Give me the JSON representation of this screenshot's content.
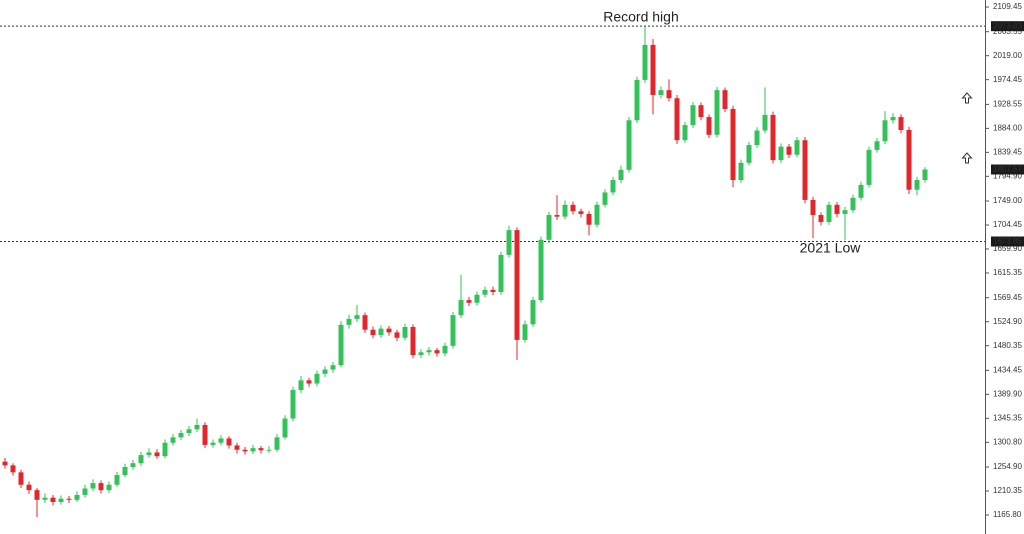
{
  "chart_data": {
    "type": "candlestick",
    "up_color": "#33c15a",
    "down_color": "#e3262b",
    "ylim": [
      1130.49,
      2122.45
    ],
    "yticks": [
      2109.45,
      2063.55,
      {
        "value": 2019,
        "label": "2019.00"
      },
      1974.45,
      1928.55,
      {
        "value": 1884,
        "label": "1884.00"
      },
      1839.45,
      {
        "value": 1794.9,
        "label": "1794.90"
      },
      {
        "value": 1749,
        "label": "1749.00"
      },
      1704.45,
      {
        "value": 1659.9,
        "label": "1659.90"
      },
      1615.35,
      1569.45,
      {
        "value": 1524.9,
        "label": "1524.90"
      },
      1480.35,
      1434.45,
      {
        "value": 1389.9,
        "label": "1389.90"
      },
      1345.35,
      {
        "value": 1300.8,
        "label": "1300.80"
      },
      {
        "value": 1254.9,
        "label": "1254.90"
      },
      1210.35,
      {
        "value": 1165.8,
        "label": "1165.80"
      }
    ],
    "price_lines": [
      2073.83,
      1673.85
    ],
    "annotations": [
      "Record high",
      "2021 Low"
    ],
    "ohlc": [
      [
        1265,
        1272,
        1252,
        1258
      ],
      [
        1258,
        1262,
        1239,
        1245
      ],
      [
        1245,
        1250,
        1216,
        1222
      ],
      [
        1222,
        1228,
        1205,
        1212
      ],
      [
        1212,
        1216,
        1162,
        1194
      ],
      [
        1194,
        1206,
        1188,
        1198
      ],
      [
        1198,
        1203,
        1184,
        1190
      ],
      [
        1190,
        1202,
        1185,
        1196
      ],
      [
        1196,
        1201,
        1188,
        1194
      ],
      [
        1194,
        1210,
        1190,
        1203
      ],
      [
        1203,
        1222,
        1198,
        1215
      ],
      [
        1215,
        1232,
        1210,
        1225
      ],
      [
        1225,
        1230,
        1206,
        1212
      ],
      [
        1212,
        1228,
        1207,
        1222
      ],
      [
        1222,
        1246,
        1218,
        1240
      ],
      [
        1240,
        1261,
        1236,
        1255
      ],
      [
        1255,
        1268,
        1250,
        1262
      ],
      [
        1262,
        1283,
        1257,
        1277
      ],
      [
        1277,
        1290,
        1272,
        1282
      ],
      [
        1282,
        1288,
        1270,
        1275
      ],
      [
        1275,
        1306,
        1271,
        1300
      ],
      [
        1300,
        1316,
        1295,
        1310
      ],
      [
        1310,
        1324,
        1305,
        1318
      ],
      [
        1318,
        1331,
        1312,
        1325
      ],
      [
        1325,
        1345,
        1320,
        1333
      ],
      [
        1333,
        1338,
        1290,
        1296
      ],
      [
        1296,
        1306,
        1291,
        1300
      ],
      [
        1300,
        1314,
        1295,
        1308
      ],
      [
        1308,
        1312,
        1289,
        1295
      ],
      [
        1295,
        1300,
        1280,
        1287
      ],
      [
        1287,
        1292,
        1278,
        1284
      ],
      [
        1284,
        1296,
        1279,
        1290
      ],
      [
        1290,
        1294,
        1280,
        1286
      ],
      [
        1286,
        1294,
        1281,
        1287
      ],
      [
        1287,
        1316,
        1283,
        1310
      ],
      [
        1310,
        1351,
        1306,
        1345
      ],
      [
        1345,
        1404,
        1340,
        1398
      ],
      [
        1398,
        1424,
        1392,
        1416
      ],
      [
        1416,
        1421,
        1404,
        1410
      ],
      [
        1410,
        1434,
        1405,
        1428
      ],
      [
        1428,
        1442,
        1422,
        1436
      ],
      [
        1436,
        1450,
        1430,
        1444
      ],
      [
        1444,
        1526,
        1440,
        1519
      ],
      [
        1519,
        1538,
        1512,
        1530
      ],
      [
        1530,
        1556,
        1524,
        1537
      ],
      [
        1537,
        1542,
        1504,
        1510
      ],
      [
        1510,
        1516,
        1494,
        1500
      ],
      [
        1500,
        1518,
        1495,
        1512
      ],
      [
        1512,
        1517,
        1499,
        1505
      ],
      [
        1505,
        1510,
        1489,
        1495
      ],
      [
        1495,
        1521,
        1490,
        1515
      ],
      [
        1515,
        1520,
        1457,
        1463
      ],
      [
        1463,
        1474,
        1458,
        1468
      ],
      [
        1468,
        1478,
        1462,
        1472
      ],
      [
        1472,
        1476,
        1460,
        1466
      ],
      [
        1466,
        1486,
        1461,
        1480
      ],
      [
        1480,
        1543,
        1475,
        1537
      ],
      [
        1537,
        1612,
        1532,
        1565
      ],
      [
        1565,
        1571,
        1554,
        1560
      ],
      [
        1560,
        1581,
        1555,
        1575
      ],
      [
        1575,
        1590,
        1570,
        1584
      ],
      [
        1584,
        1590,
        1574,
        1580
      ],
      [
        1580,
        1655,
        1575,
        1649
      ],
      [
        1649,
        1703,
        1644,
        1695
      ],
      [
        1695,
        1700,
        1454,
        1491
      ],
      [
        1491,
        1527,
        1486,
        1520
      ],
      [
        1520,
        1571,
        1515,
        1565
      ],
      [
        1565,
        1683,
        1560,
        1677
      ],
      [
        1677,
        1729,
        1671,
        1723
      ],
      [
        1723,
        1760,
        1714,
        1720
      ],
      [
        1720,
        1750,
        1715,
        1742
      ],
      [
        1742,
        1748,
        1724,
        1730
      ],
      [
        1730,
        1735,
        1719,
        1725
      ],
      [
        1725,
        1730,
        1685,
        1705
      ],
      [
        1705,
        1748,
        1700,
        1742
      ],
      [
        1742,
        1771,
        1737,
        1765
      ],
      [
        1765,
        1794,
        1760,
        1788
      ],
      [
        1788,
        1815,
        1782,
        1807
      ],
      [
        1807,
        1905,
        1802,
        1899
      ],
      [
        1899,
        1980,
        1894,
        1974
      ],
      [
        1974,
        2074,
        1968,
        2039
      ],
      [
        2039,
        2050,
        1910,
        1946
      ],
      [
        1946,
        1962,
        1940,
        1955
      ],
      [
        1955,
        1975,
        1934,
        1940
      ],
      [
        1940,
        1946,
        1855,
        1862
      ],
      [
        1862,
        1896,
        1857,
        1890
      ],
      [
        1890,
        1933,
        1885,
        1927
      ],
      [
        1927,
        1932,
        1899,
        1905
      ],
      [
        1905,
        1910,
        1866,
        1872
      ],
      [
        1872,
        1961,
        1867,
        1955
      ],
      [
        1955,
        1960,
        1914,
        1920
      ],
      [
        1920,
        1926,
        1775,
        1788
      ],
      [
        1788,
        1826,
        1783,
        1820
      ],
      [
        1820,
        1859,
        1815,
        1853
      ],
      [
        1853,
        1886,
        1848,
        1880
      ],
      [
        1880,
        1960,
        1875,
        1909
      ],
      [
        1909,
        1915,
        1819,
        1825
      ],
      [
        1825,
        1856,
        1820,
        1850
      ],
      [
        1850,
        1855,
        1829,
        1835
      ],
      [
        1835,
        1868,
        1830,
        1862
      ],
      [
        1862,
        1868,
        1745,
        1751
      ],
      [
        1751,
        1757,
        1680,
        1723
      ],
      [
        1723,
        1728,
        1704,
        1710
      ],
      [
        1710,
        1748,
        1705,
        1742
      ],
      [
        1742,
        1747,
        1719,
        1725
      ],
      [
        1725,
        1738,
        1676,
        1732
      ],
      [
        1732,
        1761,
        1727,
        1755
      ],
      [
        1755,
        1785,
        1750,
        1779
      ],
      [
        1779,
        1850,
        1774,
        1844
      ],
      [
        1844,
        1866,
        1839,
        1860
      ],
      [
        1860,
        1916,
        1855,
        1899
      ],
      [
        1899,
        1912,
        1893,
        1905
      ],
      [
        1905,
        1910,
        1875,
        1881
      ],
      [
        1881,
        1887,
        1762,
        1770
      ],
      [
        1770,
        1794,
        1760,
        1788
      ],
      [
        1788,
        1812,
        1783,
        1807.57
      ]
    ]
  }
}
